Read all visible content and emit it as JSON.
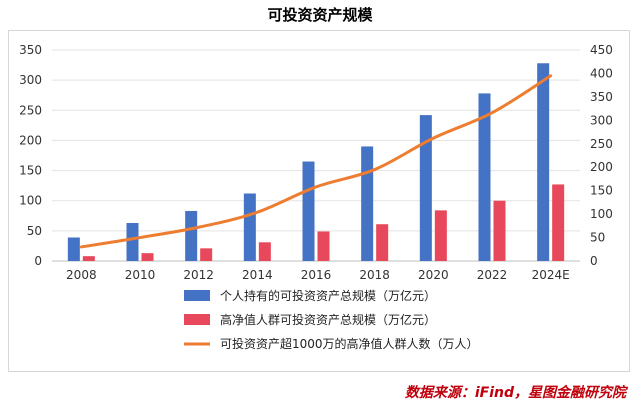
{
  "chart_data": {
    "type": "bar",
    "title": "可投资资产规模",
    "categories": [
      "2008",
      "2010",
      "2012",
      "2014",
      "2016",
      "2018",
      "2020",
      "2022",
      "2024E"
    ],
    "series": [
      {
        "name": "个人持有的可投资资产总规模（万亿元）",
        "type": "bar",
        "axis": "left",
        "color": "#4472c4",
        "values": [
          39,
          63,
          83,
          112,
          165,
          190,
          242,
          278,
          328
        ]
      },
      {
        "name": "高净值人群可投资资产总规模（万亿元）",
        "type": "bar",
        "axis": "left",
        "color": "#e8485c",
        "values": [
          8,
          13,
          21,
          31,
          49,
          61,
          84,
          100,
          127
        ]
      },
      {
        "name": "可投资资产超1000万的高净值人群人数（万人）",
        "type": "line",
        "axis": "right",
        "color": "#ed7d31",
        "values": [
          30,
          50,
          72,
          104,
          158,
          195,
          262,
          316,
          395
        ]
      }
    ],
    "y_left": {
      "ylim": [
        0,
        350
      ],
      "ticks": [
        0,
        50,
        100,
        150,
        200,
        250,
        300,
        350
      ]
    },
    "y_right": {
      "ylim": [
        0,
        450
      ],
      "ticks": [
        0,
        50,
        100,
        150,
        200,
        250,
        300,
        350,
        400,
        450
      ]
    },
    "legend_position": "bottom"
  },
  "source_text": "数据来源：iFind，星图金融研究院"
}
